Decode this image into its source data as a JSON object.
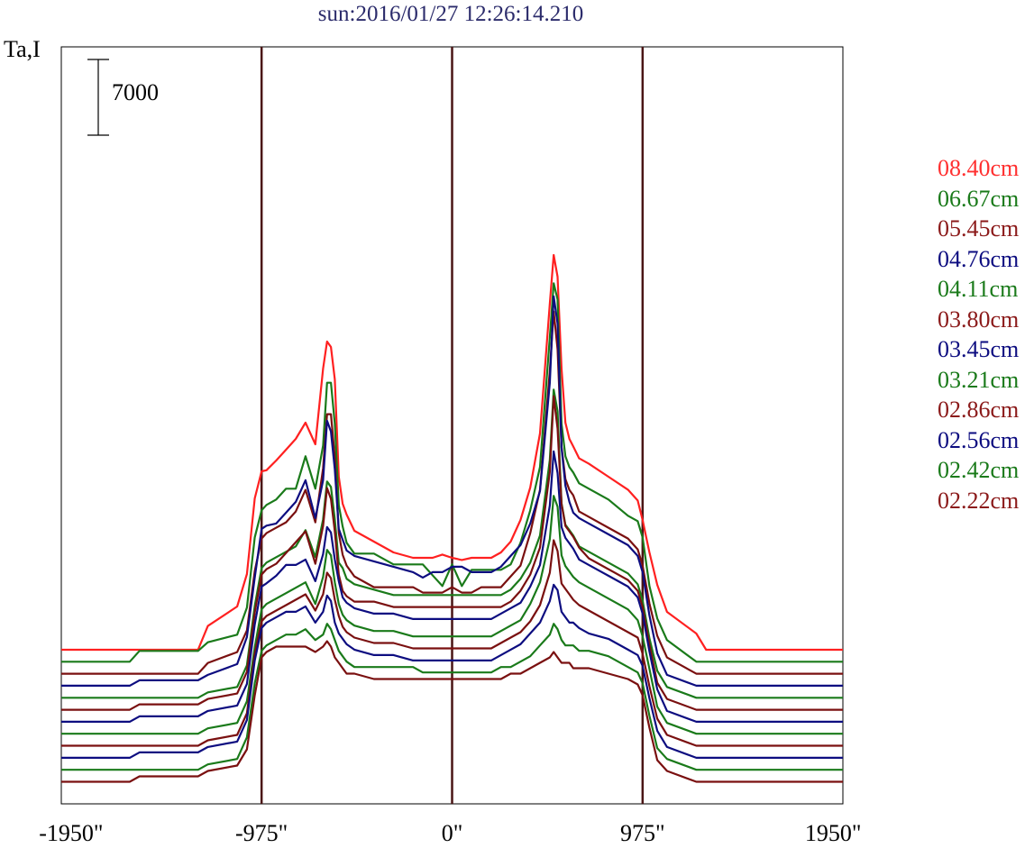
{
  "title": "sun:2016/01/27 12:26:14.210",
  "chart_data": {
    "type": "line",
    "title": "sun:2016/01/27 12:26:14.210",
    "ylabel": "Ta,I",
    "xlabel": "",
    "xlim": [
      -2000,
      2000
    ],
    "x_ticks": [
      {
        "value": -1950,
        "label": "-1950\""
      },
      {
        "value": -975,
        "label": "-975\""
      },
      {
        "value": 0,
        "label": "0\""
      },
      {
        "value": 975,
        "label": "975\""
      },
      {
        "value": 1950,
        "label": "1950\""
      }
    ],
    "vertical_markers": [
      -975,
      0,
      975
    ],
    "scale_bar": {
      "value": 7000,
      "label": "7000"
    },
    "x": [
      -2000,
      -1650,
      -1600,
      -1300,
      -1250,
      -1100,
      -1050,
      -1010,
      -975,
      -950,
      -900,
      -850,
      -800,
      -750,
      -700,
      -660,
      -640,
      -620,
      -600,
      -580,
      -560,
      -540,
      -500,
      -400,
      -300,
      -200,
      -150,
      -100,
      -50,
      0,
      50,
      100,
      150,
      200,
      250,
      300,
      350,
      400,
      450,
      500,
      520,
      540,
      560,
      580,
      600,
      620,
      650,
      700,
      800,
      900,
      950,
      975,
      1010,
      1050,
      1100,
      1250,
      1300,
      1600,
      1650,
      2000
    ],
    "series": [
      {
        "name": "08.40cm",
        "color": "#ff2020",
        "offset": 13335,
        "values": [
          0,
          0,
          0,
          0,
          2200,
          4000,
          7000,
          14000,
          16500,
          16600,
          17500,
          18500,
          19500,
          21000,
          19000,
          26000,
          28500,
          28000,
          25000,
          16000,
          13500,
          12500,
          11000,
          10000,
          9000,
          8500,
          8500,
          8500,
          8800,
          8500,
          8300,
          8500,
          8500,
          8500,
          9000,
          10000,
          12000,
          15000,
          20000,
          32000,
          36500,
          34500,
          26000,
          21000,
          19500,
          18800,
          17700,
          17200,
          16000,
          14800,
          13800,
          12000,
          9000,
          6000,
          3500,
          1500,
          0,
          0,
          0,
          0
        ]
      },
      {
        "name": "06.67cm",
        "color": "#1a7a1a",
        "offset": 12225,
        "values": [
          0,
          0,
          1000,
          1000,
          1800,
          2500,
          5000,
          11500,
          14000,
          14500,
          15000,
          16000,
          16000,
          19000,
          16000,
          20000,
          25800,
          25800,
          22000,
          14500,
          12500,
          11000,
          10000,
          10000,
          9000,
          9000,
          9000,
          8000,
          7000,
          9000,
          7000,
          8500,
          8500,
          8500,
          8500,
          9000,
          11000,
          14000,
          18000,
          30000,
          35000,
          33500,
          22000,
          19000,
          18000,
          17500,
          16500,
          16000,
          15000,
          13500,
          13000,
          11500,
          7000,
          4000,
          2000,
          0,
          0,
          0,
          0,
          0
        ]
      },
      {
        "name": "05.45cm",
        "color": "#7a1010",
        "offset": 11115,
        "values": [
          0,
          0,
          0,
          0,
          1000,
          2000,
          4000,
          9500,
          12500,
          13000,
          13500,
          14000,
          15000,
          17000,
          14000,
          19000,
          24000,
          24000,
          20000,
          13000,
          11000,
          10000,
          9000,
          8000,
          8000,
          8000,
          7500,
          7500,
          7500,
          8000,
          7500,
          7500,
          8000,
          8000,
          8000,
          9000,
          10000,
          13000,
          17000,
          28000,
          33500,
          30000,
          21000,
          18000,
          17000,
          16500,
          15000,
          14500,
          13500,
          12500,
          11500,
          10000,
          6500,
          3500,
          1500,
          0,
          0,
          0,
          0,
          0
        ]
      },
      {
        "name": "04.76cm",
        "color": "#0d0d80",
        "offset": 10005,
        "values": [
          0,
          0,
          500,
          500,
          1000,
          2000,
          4500,
          10000,
          14500,
          14800,
          15000,
          16000,
          17000,
          19000,
          15500,
          19000,
          24500,
          23500,
          20000,
          14500,
          13500,
          12500,
          12000,
          11500,
          11000,
          10500,
          10000,
          10500,
          10500,
          11000,
          11000,
          10500,
          10500,
          10500,
          11000,
          12000,
          13000,
          15000,
          18000,
          28000,
          36000,
          33500,
          22000,
          18500,
          17000,
          16000,
          15500,
          15000,
          14000,
          13000,
          12000,
          10500,
          6500,
          3000,
          1000,
          0,
          0,
          0,
          0,
          0
        ]
      },
      {
        "name": "04.11cm",
        "color": "#1a7a1a",
        "offset": 8895,
        "values": [
          0,
          0,
          0,
          0,
          500,
          1000,
          3000,
          8500,
          12000,
          12500,
          13000,
          13500,
          14000,
          15500,
          13000,
          16500,
          20000,
          19500,
          16500,
          12500,
          12000,
          11000,
          10500,
          10000,
          9500,
          9500,
          9500,
          9500,
          9500,
          9500,
          9500,
          9500,
          9500,
          9500,
          9500,
          10000,
          11000,
          12500,
          15000,
          22000,
          28500,
          26500,
          18000,
          16000,
          15500,
          15000,
          14000,
          13500,
          12500,
          11500,
          10500,
          9000,
          5500,
          2500,
          1000,
          0,
          0,
          0,
          0,
          0
        ]
      },
      {
        "name": "03.80cm",
        "color": "#7a1010",
        "offset": 7785,
        "values": [
          0,
          0,
          500,
          500,
          1000,
          1500,
          3500,
          9000,
          12500,
          13000,
          13500,
          14500,
          15500,
          16500,
          13500,
          17000,
          20500,
          19500,
          16500,
          12500,
          11000,
          10500,
          10000,
          10000,
          9500,
          9500,
          9500,
          9500,
          9500,
          9500,
          9500,
          9500,
          9500,
          9500,
          9500,
          10000,
          11000,
          12500,
          15000,
          22000,
          29000,
          26000,
          19000,
          17000,
          16500,
          16000,
          15000,
          14000,
          13000,
          12000,
          11000,
          9500,
          6000,
          2500,
          1000,
          0,
          0,
          0,
          0,
          0
        ]
      },
      {
        "name": "03.45cm",
        "color": "#0d0d80",
        "offset": 6675,
        "values": [
          0,
          0,
          500,
          500,
          1000,
          1500,
          3500,
          9000,
          12500,
          12800,
          13500,
          14500,
          14500,
          15000,
          13000,
          15500,
          18000,
          17500,
          15000,
          13000,
          11500,
          11000,
          10500,
          10000,
          10000,
          9500,
          9500,
          9500,
          9500,
          9500,
          9500,
          9500,
          9500,
          9500,
          10000,
          10500,
          11000,
          12500,
          14500,
          20000,
          25000,
          23000,
          18000,
          17000,
          16500,
          16000,
          15000,
          14500,
          13500,
          12500,
          11500,
          10000,
          6500,
          3000,
          1000,
          0,
          0,
          0,
          0,
          0
        ]
      },
      {
        "name": "03.21cm",
        "color": "#1a7a1a",
        "offset": 5565,
        "values": [
          0,
          0,
          0,
          0,
          500,
          1000,
          3000,
          8000,
          11500,
          12000,
          12500,
          13000,
          13500,
          14000,
          12000,
          14500,
          17000,
          16500,
          14000,
          12000,
          11000,
          10500,
          10000,
          9500,
          9500,
          9000,
          9000,
          9000,
          9000,
          9000,
          9000,
          9000,
          9000,
          9000,
          9500,
          10000,
          10500,
          12000,
          14000,
          18000,
          22000,
          21000,
          16500,
          15500,
          15000,
          14500,
          14000,
          13500,
          12500,
          11500,
          10500,
          9000,
          6000,
          2500,
          1000,
          0,
          0,
          0,
          0,
          0
        ]
      },
      {
        "name": "02.86cm",
        "color": "#7a1010",
        "offset": 4455,
        "values": [
          0,
          0,
          0,
          0,
          500,
          1000,
          3000,
          8500,
          11500,
          12000,
          12500,
          13000,
          13500,
          14000,
          12500,
          14000,
          16000,
          15500,
          13500,
          12000,
          11000,
          10500,
          10000,
          9500,
          9500,
          9000,
          9000,
          9000,
          9000,
          9000,
          9000,
          9000,
          9000,
          9000,
          9500,
          10000,
          10500,
          11500,
          13000,
          16000,
          19000,
          18000,
          15000,
          14500,
          14000,
          13500,
          13000,
          12500,
          11500,
          10500,
          10000,
          8500,
          5500,
          2500,
          1000,
          0,
          0,
          0,
          0,
          0
        ]
      },
      {
        "name": "02.56cm",
        "color": "#0d0d80",
        "offset": 3345,
        "values": [
          0,
          0,
          500,
          500,
          1000,
          1500,
          3500,
          9000,
          12000,
          12500,
          13000,
          13500,
          13500,
          14000,
          12500,
          13500,
          15000,
          14500,
          12500,
          11500,
          11000,
          10500,
          10000,
          9500,
          9500,
          9000,
          9000,
          9000,
          9000,
          9000,
          9000,
          9000,
          9000,
          9000,
          9500,
          10000,
          10500,
          11500,
          12500,
          14500,
          16000,
          15500,
          13500,
          13000,
          12500,
          12500,
          12000,
          11500,
          11000,
          10000,
          9500,
          8500,
          5500,
          2500,
          1000,
          0,
          0,
          0,
          0,
          0
        ]
      },
      {
        "name": "02.42cm",
        "color": "#1a7a1a",
        "offset": 2235,
        "values": [
          0,
          0,
          0,
          0,
          500,
          1000,
          3000,
          8000,
          11000,
          11500,
          12000,
          12500,
          12500,
          13000,
          12000,
          12500,
          13500,
          13000,
          12000,
          11000,
          10500,
          10000,
          9500,
          9500,
          9500,
          9500,
          9000,
          9000,
          9000,
          9000,
          9000,
          9000,
          9000,
          9000,
          9500,
          9500,
          10000,
          10500,
          11500,
          12500,
          13500,
          13000,
          12000,
          11500,
          11500,
          11500,
          11000,
          11000,
          10500,
          9500,
          9000,
          8000,
          5000,
          2000,
          1000,
          0,
          0,
          0,
          0,
          0
        ]
      },
      {
        "name": "02.22cm",
        "color": "#7a1010",
        "offset": 1125,
        "values": [
          0,
          0,
          500,
          500,
          1000,
          1500,
          3000,
          8000,
          11500,
          12000,
          12500,
          12500,
          12500,
          12500,
          12000,
          12500,
          13000,
          12500,
          11500,
          11000,
          10500,
          10000,
          10000,
          9500,
          9500,
          9500,
          9500,
          9500,
          9500,
          9500,
          9500,
          9500,
          9500,
          9500,
          9500,
          10000,
          10000,
          10500,
          11000,
          11500,
          12000,
          11500,
          11000,
          11000,
          11000,
          10500,
          10500,
          10500,
          10000,
          9500,
          9000,
          8000,
          5000,
          2000,
          1000,
          0,
          0,
          0,
          0,
          0
        ]
      }
    ]
  }
}
